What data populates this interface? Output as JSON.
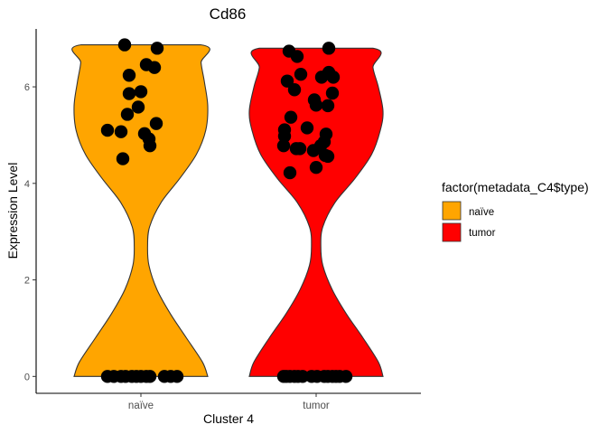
{
  "chart_data": {
    "type": "violin",
    "title": "Cd86",
    "xlabel": "Cluster 4",
    "ylabel": "Expression Level",
    "ylim": [
      -0.35,
      7.2
    ],
    "yticks": [
      0,
      2,
      4,
      6
    ],
    "categories": [
      "naïve",
      "tumor"
    ],
    "legend": {
      "title": "factor(metadata_C4$type)",
      "placement": "right",
      "entries": [
        {
          "label": "naïve",
          "color": "#FFA500"
        },
        {
          "label": "tumor",
          "color": "#FF0000"
        }
      ]
    },
    "series": [
      {
        "category": "naïve",
        "color": "#FFA500",
        "max": 6.87,
        "profile": [
          [
            0,
            1.0
          ],
          [
            0.3,
            0.92
          ],
          [
            0.8,
            0.68
          ],
          [
            1.3,
            0.44
          ],
          [
            1.8,
            0.24
          ],
          [
            2.3,
            0.12
          ],
          [
            2.7,
            0.1
          ],
          [
            3.1,
            0.13
          ],
          [
            3.6,
            0.3
          ],
          [
            4.1,
            0.58
          ],
          [
            4.6,
            0.83
          ],
          [
            5.1,
            0.97
          ],
          [
            5.6,
            1.0
          ],
          [
            6.1,
            0.95
          ],
          [
            6.5,
            0.9
          ],
          [
            6.87,
            0.9
          ]
        ],
        "points": [
          [
            -0.18,
            6.87
          ],
          [
            0.18,
            6.8
          ],
          [
            0.06,
            6.46
          ],
          [
            0.15,
            6.4
          ],
          [
            -0.13,
            6.24
          ],
          [
            0.0,
            5.9
          ],
          [
            -0.13,
            5.86
          ],
          [
            -0.03,
            5.58
          ],
          [
            -0.15,
            5.43
          ],
          [
            0.17,
            5.24
          ],
          [
            -0.37,
            5.1
          ],
          [
            -0.22,
            5.07
          ],
          [
            0.04,
            5.03
          ],
          [
            0.09,
            4.92
          ],
          [
            0.1,
            4.78
          ],
          [
            -0.2,
            4.51
          ],
          [
            -0.37,
            0
          ],
          [
            -0.3,
            0
          ],
          [
            -0.22,
            0
          ],
          [
            -0.17,
            0
          ],
          [
            -0.1,
            0
          ],
          [
            -0.05,
            0
          ],
          [
            0.0,
            0
          ],
          [
            0.06,
            0
          ],
          [
            0.1,
            0
          ],
          [
            0.26,
            0
          ],
          [
            0.33,
            0
          ],
          [
            0.4,
            0
          ]
        ]
      },
      {
        "category": "tumor",
        "color": "#FF0000",
        "max": 6.8,
        "profile": [
          [
            0,
            1.0
          ],
          [
            0.3,
            0.93
          ],
          [
            0.8,
            0.7
          ],
          [
            1.3,
            0.45
          ],
          [
            1.8,
            0.24
          ],
          [
            2.3,
            0.1
          ],
          [
            2.7,
            0.07
          ],
          [
            3.1,
            0.1
          ],
          [
            3.6,
            0.28
          ],
          [
            4.1,
            0.58
          ],
          [
            4.6,
            0.83
          ],
          [
            5.1,
            0.96
          ],
          [
            5.5,
            1.0
          ],
          [
            6.0,
            0.93
          ],
          [
            6.4,
            0.85
          ],
          [
            6.8,
            0.85
          ]
        ],
        "points": [
          [
            0.14,
            6.8
          ],
          [
            -0.3,
            6.74
          ],
          [
            -0.21,
            6.63
          ],
          [
            0.14,
            6.3
          ],
          [
            -0.17,
            6.26
          ],
          [
            0.06,
            6.2
          ],
          [
            0.19,
            6.2
          ],
          [
            -0.32,
            6.12
          ],
          [
            -0.24,
            5.94
          ],
          [
            0.18,
            5.87
          ],
          [
            -0.02,
            5.73
          ],
          [
            0.0,
            5.62
          ],
          [
            0.13,
            5.61
          ],
          [
            -0.28,
            5.37
          ],
          [
            -0.1,
            5.15
          ],
          [
            -0.35,
            5.11
          ],
          [
            -0.35,
            4.98
          ],
          [
            0.11,
            5.02
          ],
          [
            0.09,
            4.86
          ],
          [
            0.05,
            4.78
          ],
          [
            -0.36,
            4.78
          ],
          [
            -0.22,
            4.72
          ],
          [
            -0.18,
            4.72
          ],
          [
            -0.03,
            4.68
          ],
          [
            0.1,
            4.58
          ],
          [
            0.13,
            4.56
          ],
          [
            0.0,
            4.33
          ],
          [
            -0.29,
            4.22
          ],
          [
            -0.36,
            0
          ],
          [
            -0.33,
            0
          ],
          [
            -0.29,
            0
          ],
          [
            -0.24,
            0
          ],
          [
            -0.2,
            0
          ],
          [
            -0.15,
            0
          ],
          [
            -0.05,
            0
          ],
          [
            0.01,
            0
          ],
          [
            0.09,
            0
          ],
          [
            0.13,
            0
          ],
          [
            0.18,
            0
          ],
          [
            0.22,
            0
          ],
          [
            0.26,
            0
          ],
          [
            0.33,
            0
          ]
        ]
      }
    ],
    "grid": false
  }
}
